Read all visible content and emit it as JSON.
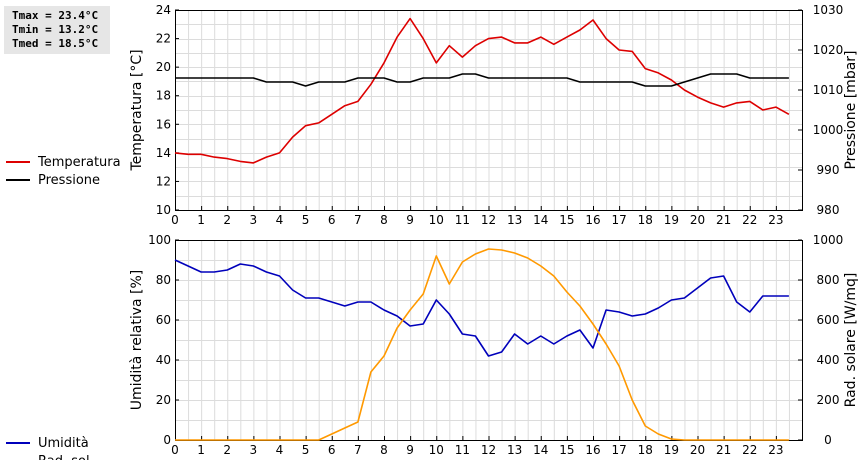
{
  "stats": {
    "tmax": "Tmax = 23.4°C",
    "tmin": "Tmin = 13.2°C",
    "tmed": "Tmed = 18.5°C"
  },
  "chart_data": [
    {
      "type": "line",
      "x_ticks": [
        "0",
        "1",
        "2",
        "3",
        "4",
        "5",
        "6",
        "7",
        "8",
        "9",
        "10",
        "11",
        "12",
        "13",
        "14",
        "15",
        "16",
        "17",
        "18",
        "19",
        "20",
        "21",
        "22",
        "23"
      ],
      "xlim": [
        0,
        24
      ],
      "y_left": {
        "label": "Temperatura [°C]",
        "lim": [
          10,
          24
        ],
        "ticks": [
          10,
          12,
          14,
          16,
          18,
          20,
          22,
          24
        ]
      },
      "y_right": {
        "label": "Pressione [mbar]",
        "lim": [
          980,
          1030
        ],
        "ticks": [
          980,
          990,
          1000,
          1010,
          1020,
          1030
        ]
      },
      "grid": true,
      "legend_placement": "left",
      "series": [
        {
          "name": "Temperatura",
          "axis": "left",
          "color": "#dd0000",
          "x": [
            0,
            0.5,
            1,
            1.5,
            2,
            2.5,
            3,
            3.5,
            4,
            4.5,
            5,
            5.5,
            6,
            6.5,
            7,
            7.5,
            8,
            8.5,
            9,
            9.5,
            10,
            10.5,
            11,
            11.5,
            12,
            12.5,
            13,
            13.5,
            14,
            14.5,
            15,
            15.5,
            16,
            16.5,
            17,
            17.5,
            18,
            18.5,
            19,
            19.5,
            20,
            20.5,
            21,
            21.5,
            22,
            22.5,
            23,
            23.5
          ],
          "values": [
            14.0,
            13.9,
            13.9,
            13.7,
            13.6,
            13.4,
            13.3,
            13.7,
            14.0,
            15.1,
            15.9,
            16.1,
            16.7,
            17.3,
            17.6,
            18.8,
            20.3,
            22.1,
            23.4,
            22.0,
            20.3,
            21.5,
            20.7,
            21.5,
            22.0,
            22.1,
            21.7,
            21.7,
            22.1,
            21.6,
            22.1,
            22.6,
            23.3,
            22.0,
            21.2,
            21.1,
            19.9,
            19.6,
            19.1,
            18.4,
            17.9,
            17.5,
            17.2,
            17.5,
            17.6,
            17.0,
            17.2,
            16.7
          ]
        },
        {
          "name": "Pressione",
          "axis": "right",
          "color": "#000000",
          "x": [
            0,
            0.5,
            1,
            1.5,
            2,
            2.5,
            3,
            3.5,
            4,
            4.5,
            5,
            5.5,
            6,
            6.5,
            7,
            7.5,
            8,
            8.5,
            9,
            9.5,
            10,
            10.5,
            11,
            11.5,
            12,
            12.5,
            13,
            13.5,
            14,
            14.5,
            15,
            15.5,
            16,
            16.5,
            17,
            17.5,
            18,
            18.5,
            19,
            19.5,
            20,
            20.5,
            21,
            21.5,
            22,
            22.5,
            23,
            23.5
          ],
          "values": [
            1013,
            1013,
            1013,
            1013,
            1013,
            1013,
            1013,
            1012,
            1012,
            1012,
            1011,
            1012,
            1012,
            1012,
            1013,
            1013,
            1013,
            1012,
            1012,
            1013,
            1013,
            1013,
            1014,
            1014,
            1013,
            1013,
            1013,
            1013,
            1013,
            1013,
            1013,
            1012,
            1012,
            1012,
            1012,
            1012,
            1011,
            1011,
            1011,
            1012,
            1013,
            1014,
            1014,
            1014,
            1013,
            1013,
            1013,
            1013
          ]
        }
      ]
    },
    {
      "type": "line",
      "x_ticks": [
        "0",
        "1",
        "2",
        "3",
        "4",
        "5",
        "6",
        "7",
        "8",
        "9",
        "10",
        "11",
        "12",
        "13",
        "14",
        "15",
        "16",
        "17",
        "18",
        "19",
        "20",
        "21",
        "22",
        "23"
      ],
      "xlim": [
        0,
        24
      ],
      "y_left": {
        "label": "Umidità relativa [%]",
        "lim": [
          0,
          100
        ],
        "ticks": [
          0,
          20,
          40,
          60,
          80,
          100
        ]
      },
      "y_right": {
        "label": "Rad. solare [W/mq]",
        "lim": [
          0,
          1000
        ],
        "ticks": [
          0,
          200,
          400,
          600,
          800,
          1000
        ]
      },
      "grid": true,
      "legend_placement": "left",
      "series": [
        {
          "name": "Umidità",
          "axis": "left",
          "color": "#0000bb",
          "x": [
            0,
            0.5,
            1,
            1.5,
            2,
            2.5,
            3,
            3.5,
            4,
            4.5,
            5,
            5.5,
            6,
            6.5,
            7,
            7.5,
            8,
            8.5,
            9,
            9.5,
            10,
            10.5,
            11,
            11.5,
            12,
            12.5,
            13,
            13.5,
            14,
            14.5,
            15,
            15.5,
            16,
            16.5,
            17,
            17.5,
            18,
            18.5,
            19,
            19.5,
            20,
            20.5,
            21,
            21.5,
            22,
            22.5,
            23,
            23.5
          ],
          "values": [
            90,
            87,
            84,
            84,
            85,
            88,
            87,
            84,
            82,
            75,
            71,
            71,
            69,
            67,
            69,
            69,
            65,
            62,
            57,
            58,
            70,
            63,
            53,
            52,
            42,
            44,
            53,
            48,
            52,
            48,
            52,
            55,
            46,
            65,
            64,
            62,
            63,
            66,
            70,
            71,
            76,
            81,
            82,
            69,
            64,
            72,
            72,
            72
          ]
        },
        {
          "name": "Rad. sol.",
          "axis": "right",
          "color": "#ff9900",
          "x": [
            0,
            0.5,
            1,
            1.5,
            2,
            2.5,
            3,
            3.5,
            4,
            4.5,
            5,
            5.5,
            6,
            6.5,
            7,
            7.5,
            8,
            8.5,
            9,
            9.5,
            10,
            10.5,
            11,
            11.5,
            12,
            12.5,
            13,
            13.5,
            14,
            14.5,
            15,
            15.5,
            16,
            16.5,
            17,
            17.5,
            18,
            18.5,
            19,
            19.5,
            20,
            20.5,
            21,
            21.5,
            22,
            22.5,
            23,
            23.5
          ],
          "values": [
            0,
            0,
            0,
            0,
            0,
            0,
            0,
            0,
            0,
            0,
            0,
            0,
            30,
            60,
            90,
            340,
            420,
            560,
            650,
            730,
            920,
            780,
            890,
            930,
            955,
            950,
            935,
            910,
            870,
            820,
            740,
            670,
            580,
            480,
            370,
            200,
            70,
            30,
            5,
            0,
            0,
            0,
            0,
            0,
            0,
            0,
            0,
            0
          ]
        }
      ]
    }
  ]
}
